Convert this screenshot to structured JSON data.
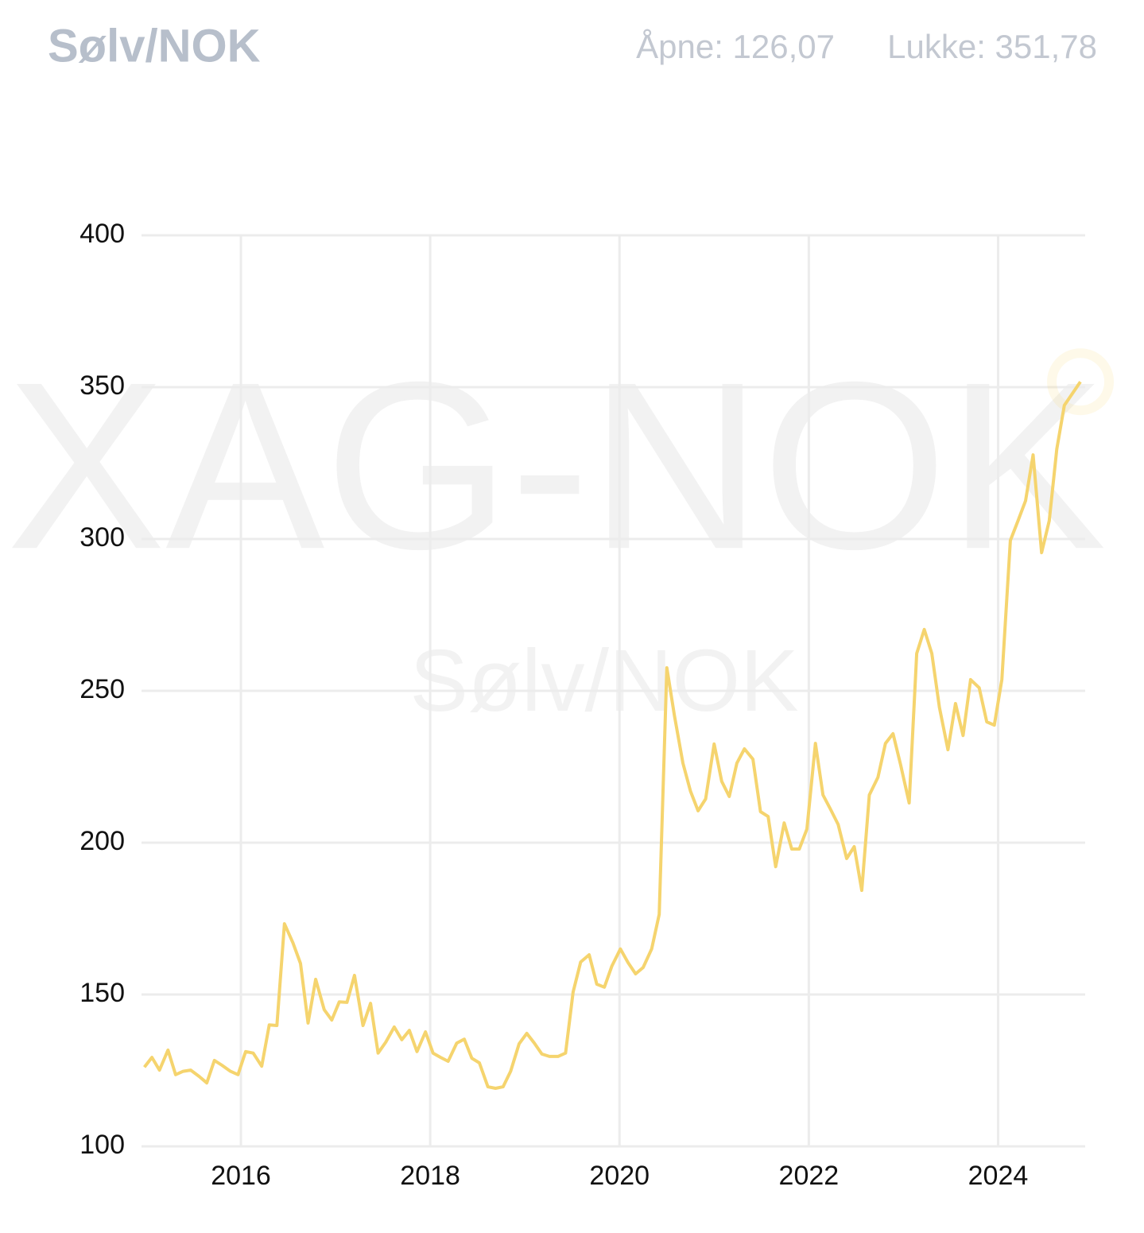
{
  "chart_data": {
    "type": "line",
    "title": "Sølv/NOK",
    "open_label": "Åpne: 126,07",
    "close_label": "Lukke: 351,78",
    "watermark": "XAG-NOK",
    "watermark_sub": "Sølv/NOK",
    "x": [
      2014.98,
      2015.06,
      2015.14,
      2015.23,
      2015.31,
      2015.39,
      2015.47,
      2015.56,
      2015.64,
      2015.72,
      2015.8,
      2015.89,
      2015.97,
      2016.05,
      2016.13,
      2016.22,
      2016.3,
      2016.38,
      2016.46,
      2016.55,
      2016.63,
      2016.71,
      2016.79,
      2016.88,
      2016.96,
      2017.04,
      2017.12,
      2017.2,
      2017.29,
      2017.37,
      2017.45,
      2017.53,
      2017.62,
      2017.7,
      2017.78,
      2017.86,
      2017.95,
      2018.03,
      2018.11,
      2018.19,
      2018.28,
      2018.36,
      2018.44,
      2018.52,
      2018.61,
      2018.69,
      2018.77,
      2018.85,
      2018.94,
      2019.02,
      2019.1,
      2019.18,
      2019.26,
      2019.35,
      2019.43,
      2019.51,
      2019.59,
      2019.68,
      2019.76,
      2019.84,
      2019.92,
      2020.01,
      2020.09,
      2020.17,
      2020.25,
      2020.34,
      2020.42,
      2020.5,
      2020.58,
      2020.67,
      2020.75,
      2020.83,
      2020.91,
      2021.0,
      2021.08,
      2021.16,
      2021.24,
      2021.32,
      2021.41,
      2021.49,
      2021.57,
      2021.65,
      2021.74,
      2021.82,
      2021.9,
      2021.98,
      2022.07,
      2022.15,
      2022.23,
      2022.31,
      2022.4,
      2022.48,
      2022.56,
      2022.64,
      2022.73,
      2022.81,
      2022.89,
      2022.97,
      2023.06,
      2023.14,
      2023.22,
      2023.3,
      2023.38,
      2023.47,
      2023.55,
      2023.63,
      2023.71,
      2023.8,
      2023.88,
      2023.96,
      2024.04,
      2024.13,
      2024.21,
      2024.29,
      2024.37,
      2024.46,
      2024.54,
      2024.62,
      2024.7,
      2024.87
    ],
    "series": [
      {
        "name": "Sølv/NOK",
        "color": "#f5d46e",
        "values": [
          126.07,
          129.3,
          125.1,
          131.7,
          123.6,
          124.7,
          125.1,
          123,
          120.9,
          128.3,
          126.7,
          124.7,
          123.6,
          131.2,
          130.7,
          126.4,
          140,
          139.8,
          173.3,
          167,
          160.2,
          140.6,
          155,
          145,
          141.6,
          147.6,
          147.4,
          156.3,
          139.8,
          147.1,
          130.7,
          134.3,
          139.3,
          135.1,
          138.2,
          131.2,
          137.7,
          130.7,
          129.3,
          128,
          134,
          135.3,
          129,
          127.5,
          119.6,
          119.1,
          119.6,
          124.7,
          133.8,
          137.2,
          134,
          130.4,
          129.6,
          129.6,
          130.7,
          150.8,
          160.7,
          163.1,
          153.4,
          152.4,
          159.4,
          165,
          160.5,
          156.8,
          158.9,
          165,
          176.4,
          257.6,
          241.9,
          226.2,
          217,
          210.5,
          214.4,
          232.5,
          220.2,
          215.2,
          226.2,
          230.9,
          227.5,
          210.2,
          208.6,
          192.1,
          206.5,
          197.9,
          197.9,
          204.5,
          232.7,
          215.7,
          211,
          206,
          194.8,
          198.7,
          184.3,
          215.7,
          221.5,
          232.7,
          235.9,
          225.7,
          213.1,
          262.3,
          270.2,
          262.3,
          244.5,
          230.6,
          245.8,
          235.3,
          253.7,
          251,
          239.8,
          238.7,
          253.7,
          299.5,
          306,
          312.6,
          327.7,
          295.5,
          306,
          329.6,
          344,
          351.78
        ]
      }
    ],
    "xlim": [
      2014.95,
      2024.92
    ],
    "xticks": [
      2016,
      2018,
      2020,
      2022,
      2024
    ],
    "ylim": [
      100,
      400
    ],
    "yticks": [
      100,
      150,
      200,
      250,
      300,
      350,
      400
    ],
    "grid": true
  }
}
